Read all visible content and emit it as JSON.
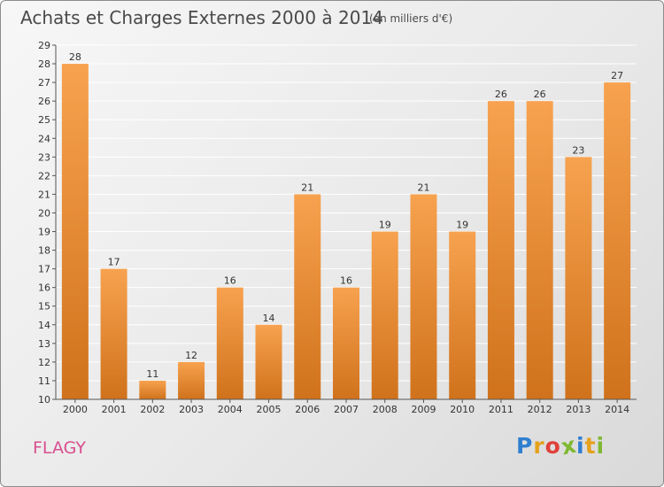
{
  "header": {
    "title": "Achats et Charges Externes 2000 à 2014",
    "subtitle": "(en milliers d'€)"
  },
  "footer": {
    "commune": "FLAGY",
    "logo": {
      "letters": [
        "P",
        "r",
        "o",
        "x",
        "i",
        "t",
        "i"
      ],
      "colors": [
        "#2f7fd0",
        "#e5a11c",
        "#e0403a",
        "#7fb832",
        "#2f7fd0",
        "#e5a11c",
        "#7fb832"
      ]
    }
  },
  "colors": {
    "bar_top": "#f7a24f",
    "bar_bottom": "#d0721c",
    "gridline": "#ffffff",
    "axis": "#555555",
    "text": "#333333"
  },
  "chart_data": {
    "type": "bar",
    "title": "Achats et Charges Externes 2000 à 2014",
    "subtitle": "(en milliers d'€)",
    "categories": [
      "2000",
      "2001",
      "2002",
      "2003",
      "2004",
      "2005",
      "2006",
      "2007",
      "2008",
      "2009",
      "2010",
      "2011",
      "2012",
      "2013",
      "2014"
    ],
    "values": [
      28,
      17,
      11,
      12,
      16,
      14,
      21,
      16,
      19,
      21,
      19,
      26,
      26,
      23,
      27
    ],
    "ylim": [
      10,
      29
    ],
    "yticks": [
      10,
      11,
      12,
      13,
      14,
      15,
      16,
      17,
      18,
      19,
      20,
      21,
      22,
      23,
      24,
      25,
      26,
      27,
      28,
      29
    ],
    "grid": true,
    "data_labels": true
  }
}
